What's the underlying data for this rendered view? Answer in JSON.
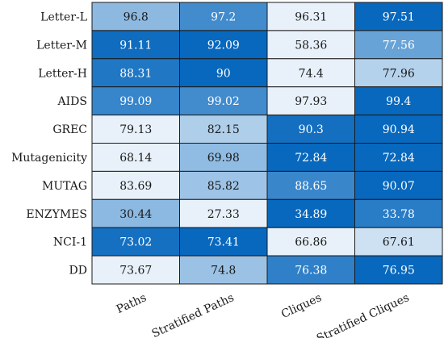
{
  "chart_data": {
    "type": "heatmap",
    "title": "",
    "xlabel": "",
    "ylabel": "",
    "columns": [
      "Paths",
      "Stratified Paths",
      "Cliques",
      "Stratified Cliques"
    ],
    "rows": [
      "Letter-L",
      "Letter-M",
      "Letter-H",
      "AIDS",
      "GREC",
      "Mutagenicity",
      "MUTAG",
      "ENZYMES",
      "NCI-1",
      "DD"
    ],
    "values": [
      [
        96.8,
        97.2,
        96.31,
        97.51
      ],
      [
        91.11,
        92.09,
        58.36,
        77.56
      ],
      [
        88.31,
        90,
        74.4,
        77.96
      ],
      [
        99.09,
        99.02,
        97.93,
        99.4
      ],
      [
        79.13,
        82.15,
        90.3,
        90.94
      ],
      [
        68.14,
        69.98,
        72.84,
        72.84
      ],
      [
        83.69,
        85.82,
        88.65,
        90.07
      ],
      [
        30.44,
        27.33,
        34.89,
        33.78
      ],
      [
        73.02,
        73.41,
        66.86,
        67.61
      ],
      [
        73.67,
        74.8,
        76.38,
        76.95
      ]
    ],
    "color_scale": "per-row, light blue (row minimum) to dark blue (row maximum)",
    "colors": {
      "low": "#e8f1fa",
      "high": "#0868bd",
      "grid": "#1a1a1a"
    },
    "grid": true,
    "legend": "none"
  }
}
